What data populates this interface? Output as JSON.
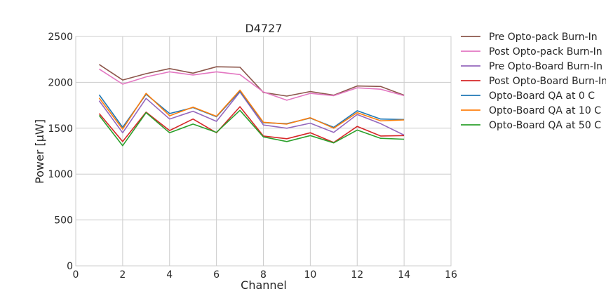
{
  "chart_data": {
    "type": "line",
    "title": "D4727",
    "xlabel": "Channel",
    "ylabel": "Power [μW]",
    "xlim": [
      0,
      16
    ],
    "ylim": [
      0,
      2500
    ],
    "xticks": [
      0,
      2,
      4,
      6,
      8,
      10,
      12,
      14,
      16
    ],
    "yticks": [
      0,
      500,
      1000,
      1500,
      2000,
      2500
    ],
    "grid": true,
    "legend_position": "outside-right",
    "x": [
      1,
      2,
      3,
      4,
      5,
      6,
      7,
      8,
      9,
      10,
      11,
      12,
      13,
      14
    ],
    "series": [
      {
        "name": "Pre Opto-pack Burn-In",
        "color": "#8c564b",
        "values": [
          2195,
          2025,
          2095,
          2150,
          2100,
          2170,
          2165,
          1890,
          1850,
          1900,
          1860,
          1960,
          1955,
          1860
        ]
      },
      {
        "name": "Post Opto-pack Burn-In",
        "color": "#e377c2",
        "values": [
          2145,
          1980,
          2060,
          2115,
          2080,
          2115,
          2085,
          1895,
          1805,
          1880,
          1855,
          1940,
          1925,
          1855
        ]
      },
      {
        "name": "Pre Opto-Board Burn-In",
        "color": "#9467bd",
        "values": [
          1800,
          1450,
          1825,
          1600,
          1685,
          1575,
          1895,
          1535,
          1500,
          1555,
          1455,
          1650,
          1550,
          1425
        ]
      },
      {
        "name": "Post Opto-Board Burn-In",
        "color": "#d62728",
        "values": [
          1660,
          1355,
          1675,
          1475,
          1600,
          1450,
          1735,
          1415,
          1385,
          1450,
          1345,
          1520,
          1415,
          1420
        ]
      },
      {
        "name": "Opto-Board QA at 0 C",
        "color": "#1f77b4",
        "values": [
          1865,
          1510,
          1870,
          1660,
          1725,
          1625,
          1905,
          1560,
          1550,
          1610,
          1510,
          1690,
          1600,
          1595
        ]
      },
      {
        "name": "Opto-Board QA at 10 C",
        "color": "#ff7f0e",
        "values": [
          1830,
          1490,
          1880,
          1635,
          1730,
          1630,
          1915,
          1565,
          1545,
          1615,
          1500,
          1670,
          1580,
          1590
        ]
      },
      {
        "name": "Opto-Board QA at 50 C",
        "color": "#2ca02c",
        "values": [
          1640,
          1310,
          1670,
          1450,
          1545,
          1455,
          1695,
          1405,
          1355,
          1420,
          1340,
          1480,
          1390,
          1380
        ]
      }
    ]
  }
}
